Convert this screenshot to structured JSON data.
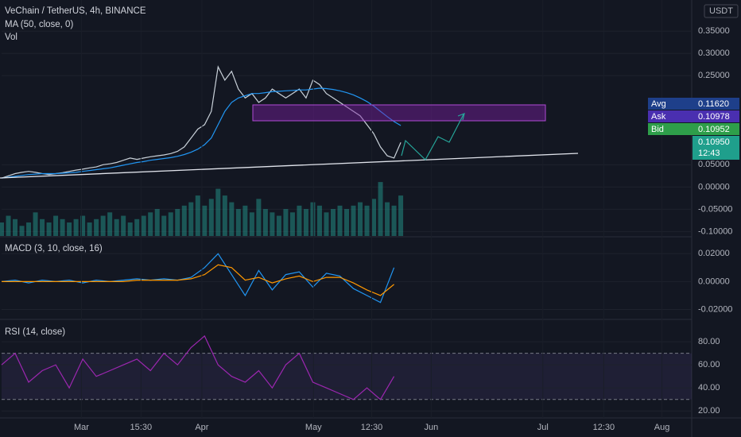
{
  "unit": "USDT",
  "price_labels": [
    {
      "name": "Avg",
      "value": 0.1162,
      "label": "0.11620",
      "color": "#1e3f8a"
    },
    {
      "name": "Ask",
      "value": 0.10978,
      "label": "0.10978",
      "color": "#4a2fb0"
    },
    {
      "name": "Bid",
      "value": 0.10952,
      "label": "0.10952",
      "color": "#2e9e4a"
    },
    {
      "name": "12:43",
      "value": 0.1095,
      "label": "0.10950",
      "color": "#1f9f8c"
    }
  ],
  "chart_data": [
    {
      "type": "line",
      "xlim": [
        0,
        102
      ],
      "ylim": [
        -0.11,
        0.42
      ],
      "yticks": [
        {
          "value": 0.35,
          "label": "0.35000"
        },
        {
          "value": 0.3,
          "label": "0.30000"
        },
        {
          "value": 0.25,
          "label": "0.25000"
        },
        {
          "value": 0.05,
          "label": "0.05000"
        },
        {
          "value": 0,
          "label": "0.00000"
        },
        {
          "value": -0.05,
          "label": "-0.05000"
        },
        {
          "value": -0.1,
          "label": "-0.10000"
        }
      ],
      "y2lim": [
        0,
        350
      ],
      "grid": true,
      "x": [
        0,
        1,
        2,
        3,
        4,
        5,
        6,
        7,
        8,
        9,
        10,
        11,
        12,
        13,
        14,
        15,
        16,
        17,
        18,
        19,
        20,
        21,
        22,
        23,
        24,
        25,
        26,
        27,
        28,
        29,
        30,
        31,
        32,
        33,
        34,
        35,
        36,
        37,
        38,
        39,
        40,
        41,
        42,
        43,
        44,
        45,
        46,
        47,
        48,
        49,
        50,
        51,
        52,
        53,
        54,
        55,
        56,
        57,
        58,
        59
      ],
      "series": [
        {
          "name": "VeChain / TetherUS, 4h, BINANCE",
          "color": "#c9d1d9",
          "values": [
            0.02,
            0.025,
            0.03,
            0.033,
            0.035,
            0.033,
            0.03,
            0.028,
            0.03,
            0.032,
            0.035,
            0.038,
            0.04,
            0.043,
            0.045,
            0.05,
            0.052,
            0.055,
            0.06,
            0.065,
            0.062,
            0.065,
            0.068,
            0.07,
            0.072,
            0.075,
            0.08,
            0.09,
            0.11,
            0.13,
            0.14,
            0.17,
            0.27,
            0.24,
            0.26,
            0.22,
            0.2,
            0.21,
            0.19,
            0.2,
            0.22,
            0.21,
            0.2,
            0.21,
            0.22,
            0.2,
            0.24,
            0.23,
            0.21,
            0.2,
            0.19,
            0.18,
            0.17,
            0.16,
            0.14,
            0.12,
            0.09,
            0.07,
            0.065,
            0.1
          ]
        },
        {
          "name": "MA (50, close, 0)",
          "color": "#2196f3",
          "values": [
            0.02,
            0.022,
            0.024,
            0.026,
            0.028,
            0.029,
            0.03,
            0.03,
            0.03,
            0.031,
            0.032,
            0.033,
            0.035,
            0.037,
            0.039,
            0.041,
            0.043,
            0.046,
            0.049,
            0.052,
            0.055,
            0.057,
            0.06,
            0.062,
            0.064,
            0.066,
            0.069,
            0.073,
            0.078,
            0.085,
            0.095,
            0.11,
            0.14,
            0.17,
            0.19,
            0.2,
            0.205,
            0.21,
            0.21,
            0.212,
            0.214,
            0.215,
            0.216,
            0.217,
            0.218,
            0.218,
            0.22,
            0.222,
            0.221,
            0.219,
            0.216,
            0.212,
            0.207,
            0.2,
            0.192,
            0.182,
            0.17,
            0.158,
            0.147,
            0.138
          ]
        },
        {
          "name": "Vol",
          "color": "#26a69a",
          "style": "bar",
          "axis": "y2",
          "values": [
            20,
            30,
            25,
            15,
            20,
            35,
            25,
            20,
            30,
            25,
            20,
            25,
            30,
            20,
            25,
            30,
            35,
            25,
            30,
            20,
            25,
            30,
            35,
            40,
            30,
            35,
            40,
            45,
            50,
            60,
            45,
            55,
            70,
            60,
            50,
            40,
            45,
            35,
            55,
            40,
            35,
            30,
            40,
            35,
            45,
            40,
            50,
            45,
            35,
            40,
            45,
            40,
            45,
            50,
            45,
            55,
            80,
            50,
            45,
            60
          ]
        }
      ]
    },
    {
      "type": "line",
      "xlim": [
        0,
        102
      ],
      "ylim": [
        -0.026,
        0.031
      ],
      "grid": true,
      "yticks": [
        {
          "value": 0.02,
          "label": "0.02000"
        },
        {
          "value": 0,
          "label": "0.00000"
        },
        {
          "value": -0.02,
          "label": "-0.02000"
        }
      ],
      "x": [
        0,
        2,
        4,
        6,
        8,
        10,
        12,
        14,
        16,
        18,
        20,
        22,
        24,
        26,
        28,
        30,
        32,
        34,
        36,
        38,
        40,
        42,
        44,
        46,
        48,
        50,
        52,
        54,
        56,
        58
      ],
      "series": [
        {
          "name": "MACD (3, 10, close, 16)",
          "color": "#2196f3",
          "values": [
            0,
            0.001,
            -0.001,
            0.001,
            0,
            0.001,
            -0.001,
            0.001,
            0,
            0.001,
            0.002,
            0.001,
            0.002,
            0.001,
            0.003,
            0.01,
            0.02,
            0.005,
            -0.01,
            0.008,
            -0.006,
            0.005,
            0.007,
            -0.004,
            0.006,
            0.004,
            -0.005,
            -0.01,
            -0.015,
            0.01
          ]
        },
        {
          "color": "#ff9800",
          "values": [
            0,
            0,
            0,
            0,
            0,
            0,
            0,
            0,
            0,
            0,
            0.001,
            0.001,
            0.001,
            0.001,
            0.002,
            0.005,
            0.012,
            0.01,
            0.001,
            0.003,
            -0.001,
            0.002,
            0.004,
            0,
            0.003,
            0.003,
            -0.001,
            -0.006,
            -0.01,
            -0.002
          ]
        }
      ]
    },
    {
      "type": "line",
      "xlim": [
        0,
        102
      ],
      "ylim": [
        14,
        98
      ],
      "grid": true,
      "band": [
        30,
        70
      ],
      "yticks": [
        {
          "value": 80,
          "label": "80.00"
        },
        {
          "value": 60,
          "label": "60.00"
        },
        {
          "value": 40,
          "label": "40.00"
        },
        {
          "value": 20,
          "label": "20.00"
        }
      ],
      "xticks": [
        {
          "value": 11.8,
          "label": "Mar"
        },
        {
          "value": 20.6,
          "label": "15:30"
        },
        {
          "value": 29.6,
          "label": "Apr"
        },
        {
          "value": 46.1,
          "label": "May"
        },
        {
          "value": 54.7,
          "label": "12:30"
        },
        {
          "value": 63.5,
          "label": "Jun"
        },
        {
          "value": 80,
          "label": "Jul"
        },
        {
          "value": 89,
          "label": "12:30"
        },
        {
          "value": 97.6,
          "label": "Aug"
        }
      ],
      "x": [
        0,
        2,
        4,
        6,
        8,
        10,
        12,
        14,
        16,
        18,
        20,
        22,
        24,
        26,
        28,
        30,
        32,
        34,
        36,
        38,
        40,
        42,
        44,
        46,
        48,
        50,
        52,
        54,
        56,
        58
      ],
      "series": [
        {
          "name": "RSI (14, close)",
          "color": "#9c27b0",
          "values": [
            60,
            70,
            45,
            55,
            60,
            40,
            65,
            50,
            55,
            60,
            65,
            55,
            70,
            60,
            75,
            85,
            60,
            50,
            45,
            55,
            40,
            60,
            70,
            45,
            40,
            35,
            30,
            40,
            30,
            50
          ]
        }
      ]
    }
  ]
}
